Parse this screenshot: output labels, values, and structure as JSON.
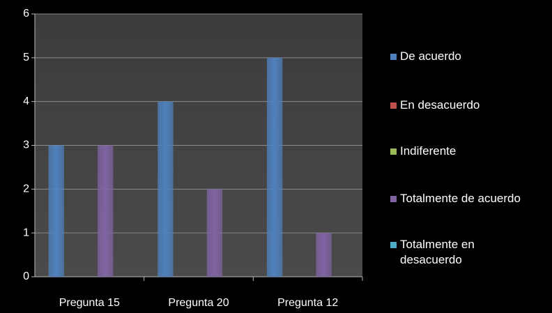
{
  "chart_data": {
    "type": "bar",
    "categories": [
      "Pregunta 15",
      "Pregunta 20",
      "Pregunta 12"
    ],
    "series": [
      {
        "name": "De acuerdo",
        "color": "#4f81bd",
        "values": [
          3,
          4,
          5
        ]
      },
      {
        "name": "En desacuerdo",
        "color": "#c0504d",
        "values": [
          0,
          0,
          0
        ]
      },
      {
        "name": "Indiferente",
        "color": "#9bbb59",
        "values": [
          0,
          0,
          0
        ]
      },
      {
        "name": "Totalmente de acuerdo",
        "color": "#8064a2",
        "values": [
          3,
          2,
          1
        ]
      },
      {
        "name": "Totalmente en desacuerdo",
        "color": "#4bacc6",
        "values": [
          0,
          0,
          0
        ]
      }
    ],
    "ylim": [
      0,
      6
    ],
    "yticks": [
      0,
      1,
      2,
      3,
      4,
      5,
      6
    ],
    "grid": true,
    "legend": "right"
  }
}
